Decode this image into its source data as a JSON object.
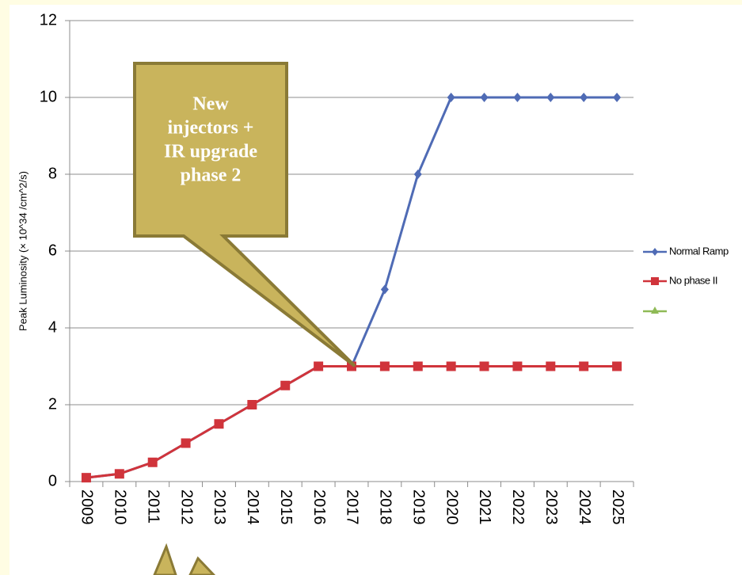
{
  "chart_data": {
    "type": "line",
    "y_label": "Peak Luminosity (× 10^34 /cm^2/s)",
    "annotation": [
      "New",
      "injectors +",
      "IR upgrade",
      "phase 2"
    ],
    "categories": [
      "2009",
      "2010",
      "2011",
      "2012",
      "2013",
      "2014",
      "2015",
      "2016",
      "2017",
      "2018",
      "2019",
      "2020",
      "2021",
      "2022",
      "2023",
      "2024",
      "2025"
    ],
    "series": [
      {
        "name": "Normal Ramp",
        "color": "#4f6bb5",
        "marker": "diamond",
        "values": [
          0.1,
          0.2,
          0.5,
          1,
          1.5,
          2,
          2.5,
          3,
          3,
          5,
          8,
          10,
          10,
          10,
          10,
          10,
          10
        ]
      },
      {
        "name": "No phase II",
        "color": "#d0343b",
        "marker": "square",
        "values": [
          0.1,
          0.2,
          0.5,
          1,
          1.5,
          2,
          2.5,
          3,
          3,
          3,
          3,
          3,
          3,
          3,
          3,
          3,
          3
        ]
      }
    ],
    "ylim": [
      0,
      12
    ],
    "yticks": [
      0,
      2,
      4,
      6,
      8,
      10,
      12
    ],
    "grid": true
  }
}
